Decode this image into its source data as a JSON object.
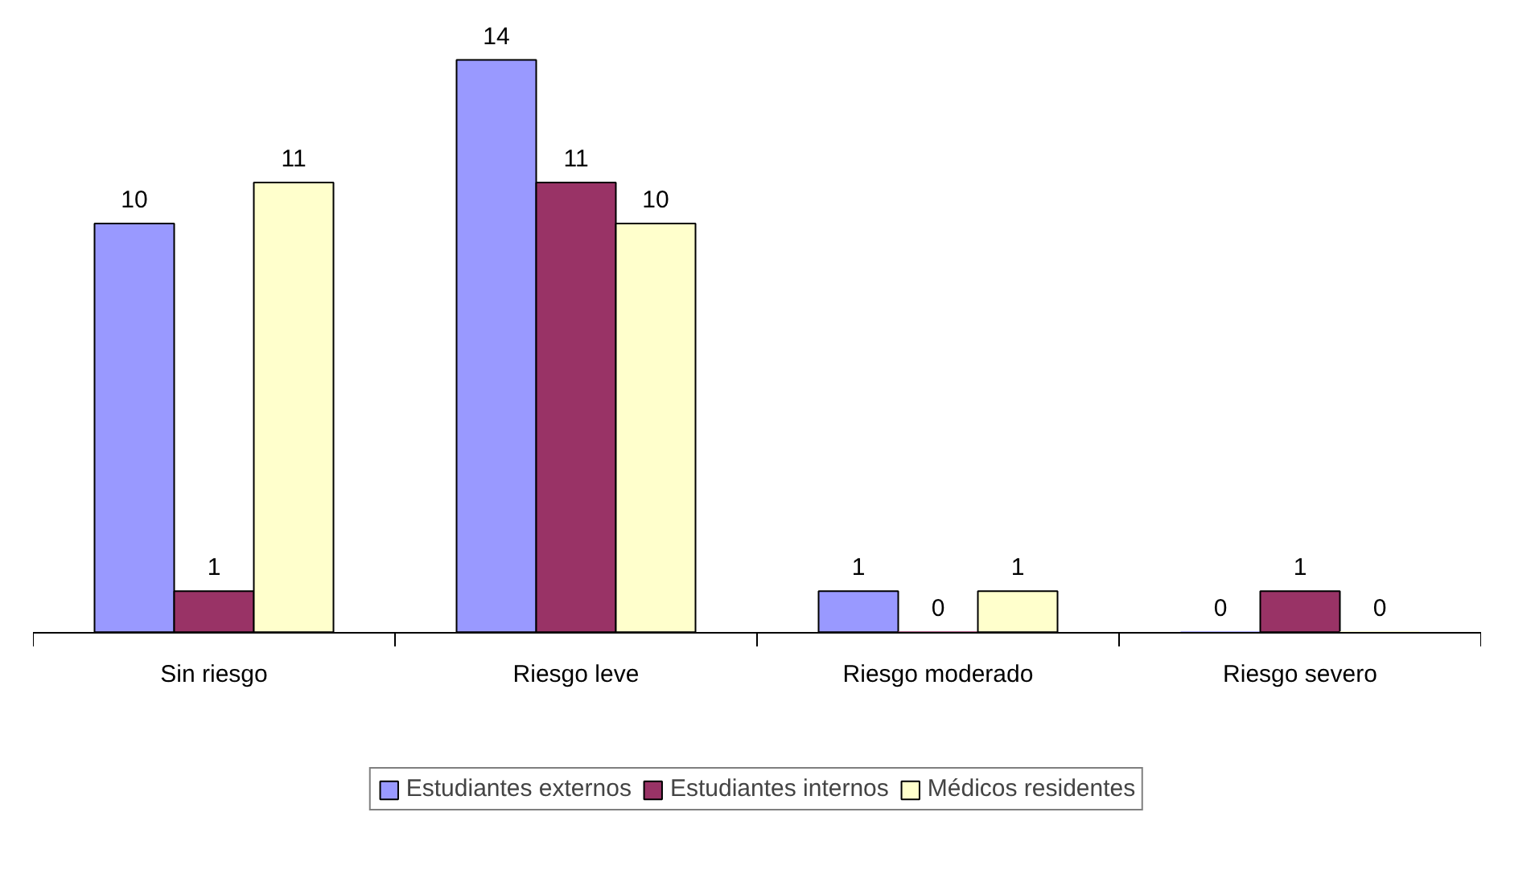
{
  "chart_data": {
    "type": "bar",
    "categories": [
      "Sin riesgo",
      "Riesgo leve",
      "Riesgo moderado",
      "Riesgo severo"
    ],
    "series": [
      {
        "name": "Estudiantes externos",
        "color": "#9999ff",
        "values": [
          10,
          14,
          1,
          0
        ]
      },
      {
        "name": "Estudiantes internos",
        "color": "#993366",
        "values": [
          1,
          11,
          0,
          1
        ]
      },
      {
        "name": "Médicos residentes",
        "color": "#ffffcc",
        "values": [
          11,
          10,
          1,
          0
        ]
      }
    ],
    "data_labels": true,
    "legend": "bottom"
  }
}
